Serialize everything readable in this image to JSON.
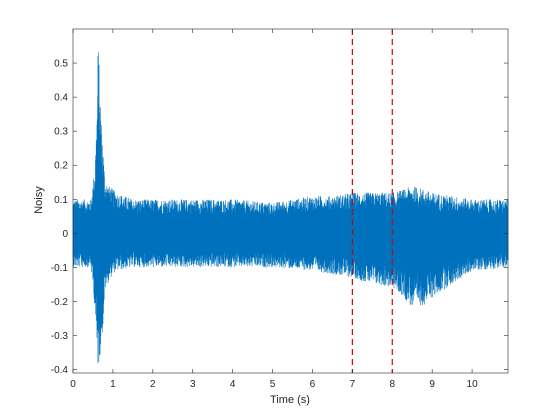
{
  "chart_data": {
    "type": "line",
    "title": "",
    "xlabel": "Time (s)",
    "ylabel": "Noisy",
    "xlim": [
      0,
      10.9
    ],
    "ylim": [
      -0.41,
      0.6
    ],
    "grid": false,
    "xticks": [
      0,
      1,
      2,
      3,
      4,
      5,
      6,
      7,
      8,
      9,
      10
    ],
    "yticks": [
      -0.4,
      -0.3,
      -0.2,
      -0.1,
      0,
      0.1,
      0.2,
      0.3,
      0.4,
      0.5
    ],
    "series": [
      {
        "name": "",
        "color": "#0072BD",
        "envelope_x": [
          0,
          0.45,
          0.55,
          0.6,
          0.63,
          0.66,
          0.7,
          0.75,
          0.8,
          0.9,
          1.0,
          1.1,
          1.5,
          2.0,
          3.0,
          4.0,
          5.0,
          6.0,
          6.5,
          7.0,
          7.5,
          8.0,
          8.3,
          8.5,
          8.8,
          9.0,
          9.5,
          10.0,
          10.9
        ],
        "envelope_upper": [
          0.1,
          0.1,
          0.2,
          0.37,
          0.58,
          0.48,
          0.36,
          0.26,
          0.16,
          0.14,
          0.13,
          0.12,
          0.1,
          0.1,
          0.1,
          0.1,
          0.09,
          0.11,
          0.11,
          0.12,
          0.12,
          0.12,
          0.13,
          0.14,
          0.13,
          0.12,
          0.11,
          0.1,
          0.1
        ],
        "envelope_lower": [
          -0.1,
          -0.1,
          -0.22,
          -0.37,
          -0.4,
          -0.38,
          -0.33,
          -0.28,
          -0.17,
          -0.14,
          -0.12,
          -0.11,
          -0.1,
          -0.1,
          -0.1,
          -0.1,
          -0.1,
          -0.11,
          -0.12,
          -0.13,
          -0.15,
          -0.16,
          -0.19,
          -0.22,
          -0.21,
          -0.19,
          -0.15,
          -0.11,
          -0.1
        ]
      }
    ],
    "vlines": [
      {
        "x": 7,
        "color": "#D00000",
        "style": "dashed"
      },
      {
        "x": 8,
        "color": "#D00000",
        "style": "dashed"
      }
    ]
  }
}
